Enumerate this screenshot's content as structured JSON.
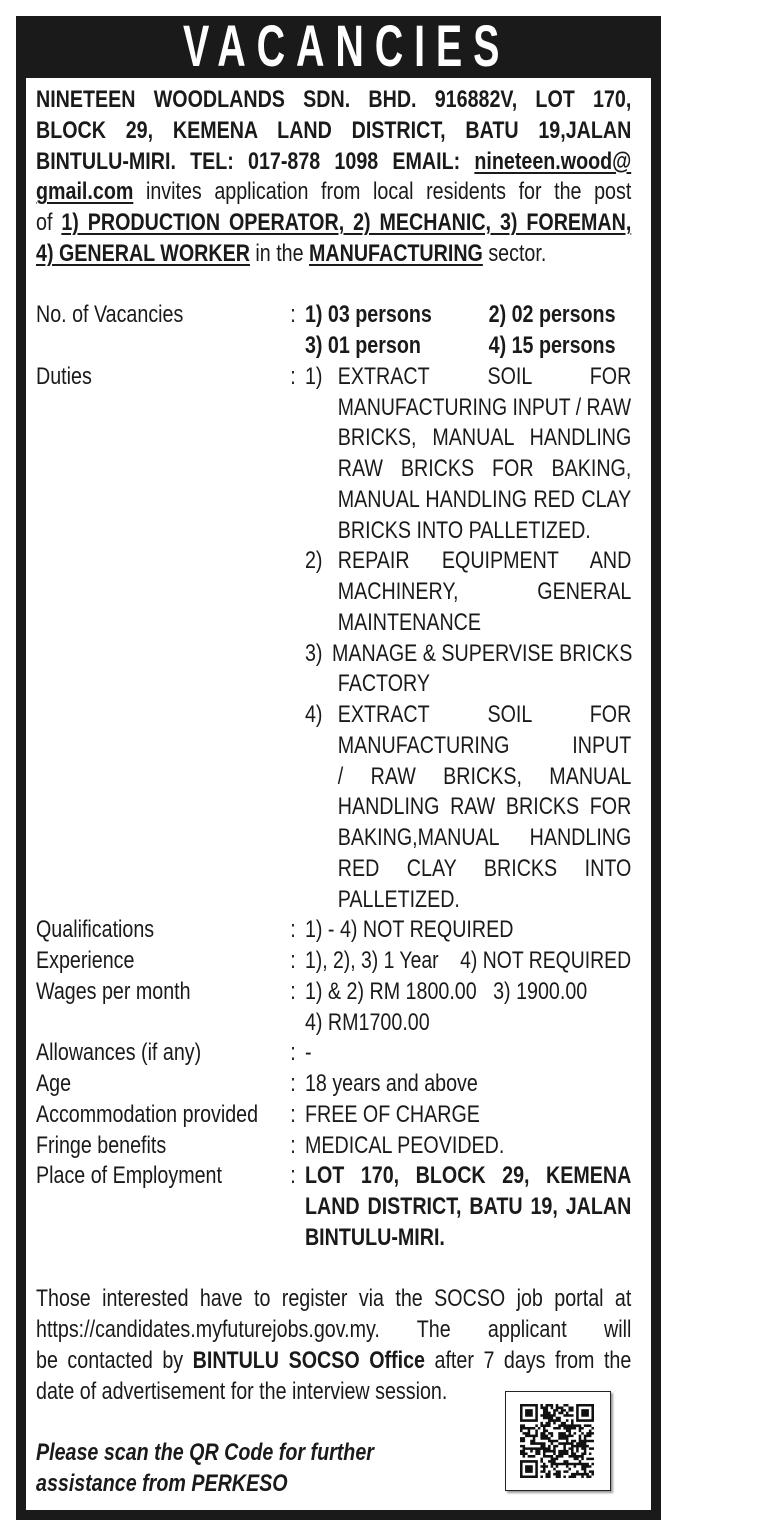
{
  "title": "VACANCIES",
  "intro": {
    "l1": "NINETEEN WOODLANDS SDN. BHD. 916882V, LOT 170,",
    "l2": "BLOCK 29, KEMENA LAND DISTRICT, BATU 19,JALAN",
    "l3a": "BINTULU-MIRI. TEL: 017-878 1098 EMAIL: ",
    "l3b": "nineteen.wood@",
    "l4a": "gmail.com",
    "l4b": " invites application from local residents for the post",
    "l5a": "of ",
    "l5b": "1) PRODUCTION OPERATOR, 2) MECHANIC, 3) FOREMAN,",
    "l6a": "4) GENERAL WORKER",
    "l6b": " in the ",
    "l6c": "MANUFACTURING",
    "l6d": " sector."
  },
  "details": {
    "vacancies": {
      "label": "No. of Vacancies",
      "v1": "1) 03 persons",
      "v2": "2) 02 persons",
      "v3": "3) 01 person",
      "v4": "4) 15 persons"
    },
    "duties": {
      "label": "Duties",
      "d1": {
        "num": "1)",
        "lines": [
          "EXTRACT SOIL FOR",
          "MANUFACTURING INPUT / RAW",
          "BRICKS, MANUAL HANDLING",
          "RAW BRICKS FOR BAKING,",
          "MANUAL HANDLING RED CLAY",
          "BRICKS INTO PALLETIZED."
        ]
      },
      "d2": {
        "num": "2)",
        "lines": [
          "REPAIR EQUIPMENT AND",
          "MACHINERY, GENERAL",
          "MAINTENANCE"
        ]
      },
      "d3": {
        "num": "3)",
        "lines": [
          "MANAGE & SUPERVISE BRICKS",
          "FACTORY"
        ]
      },
      "d4": {
        "num": "4)",
        "lines": [
          "EXTRACT SOIL FOR",
          "MANUFACTURING INPUT",
          "/ RAW BRICKS, MANUAL",
          "HANDLING RAW BRICKS FOR",
          "BAKING,MANUAL HANDLING",
          "RED CLAY BRICKS INTO",
          "PALLETIZED."
        ]
      }
    },
    "qualifications": {
      "label": "Qualifications",
      "value": "1) - 4) NOT REQUIRED"
    },
    "experience": {
      "label": "Experience",
      "value": "1), 2), 3) 1 Year    4) NOT REQUIRED"
    },
    "wages": {
      "label": "Wages per month",
      "value1": "1) & 2) RM 1800.00   3) 1900.00",
      "value2": "4) RM1700.00"
    },
    "allowances": {
      "label": "Allowances (if any)",
      "value": "-"
    },
    "age": {
      "label": "Age",
      "value": "18 years and above"
    },
    "accommodation": {
      "label": "Accommodation provided",
      "value": "FREE OF CHARGE"
    },
    "fringe": {
      "label": "Fringe benefits",
      "value": "MEDICAL PEOVIDED."
    },
    "place": {
      "label": "Place of Employment",
      "lines": [
        "LOT 170, BLOCK 29, KEMENA",
        "LAND DISTRICT, BATU 19, JALAN",
        "BINTULU-MIRI."
      ]
    },
    "colon": ":"
  },
  "footer": {
    "l1": "Those interested have to register via the SOCSO job portal at",
    "l2": "https://candidates.myfuturejobs.gov.my. The applicant will",
    "l3a": "be contacted by ",
    "l3b": "BINTULU SOCSO Office",
    "l3c": " after 7 days from the",
    "l4": "date of advertisement for the interview session.",
    "note1": "Please scan the QR Code for further",
    "note2": "assistance from PERKESO"
  },
  "qr_icon": "qr-code"
}
